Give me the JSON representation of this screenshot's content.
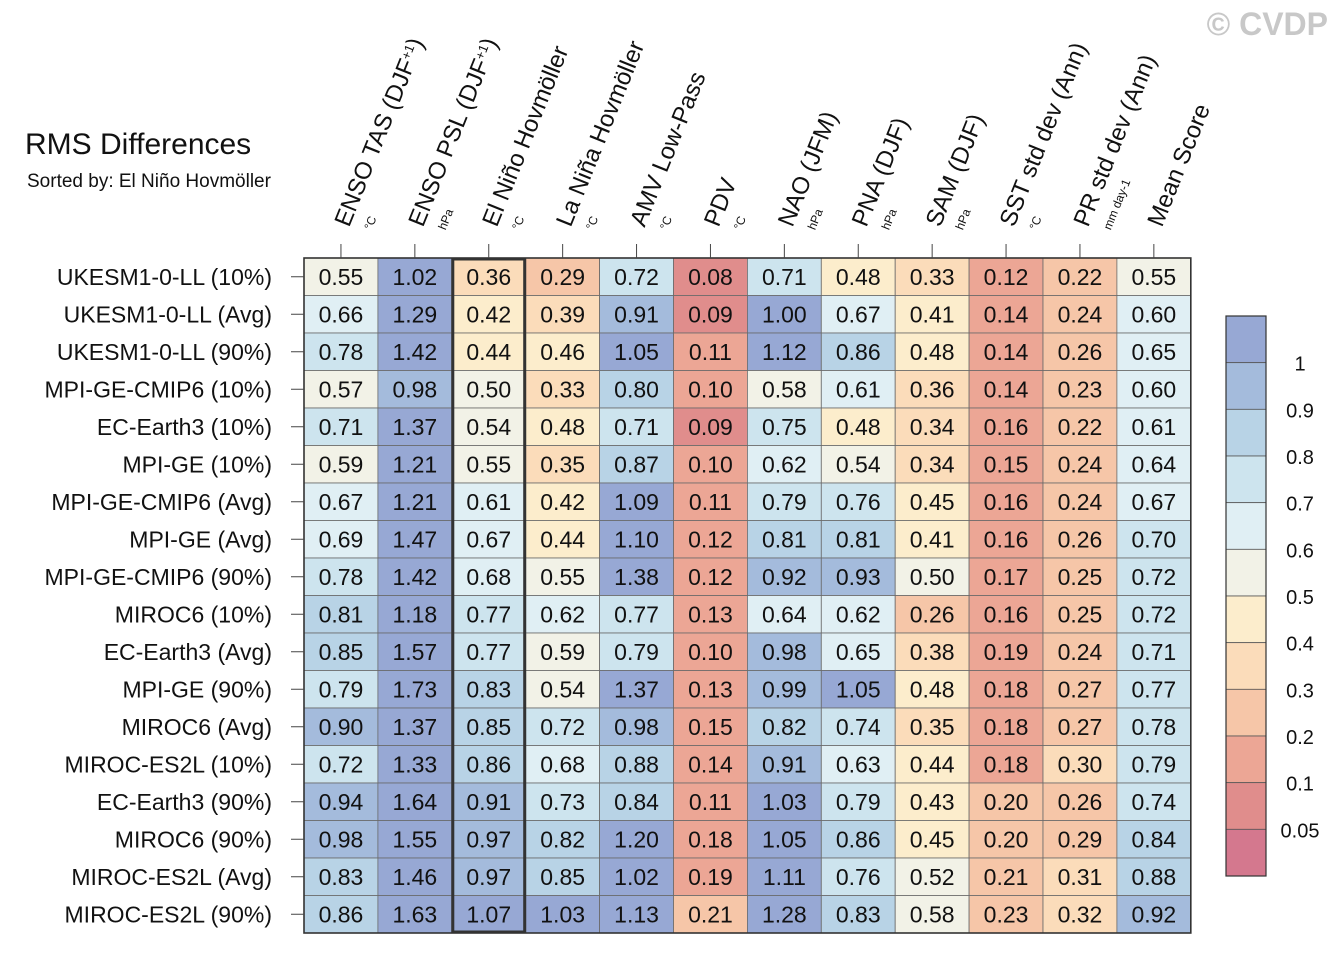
{
  "title": "RMS Differences",
  "subtitle": "Sorted by: El Niño Hovmöller",
  "copyright": "© CVDP",
  "chart_data": {
    "type": "heatmap",
    "title": "RMS Differences",
    "subtitle": "Sorted by: El Niño Hovmöller",
    "highlighted_column": "El Niño Hovmöller",
    "columns": [
      {
        "label": "ENSO TAS (DJF+1)",
        "main": "ENSO TAS (DJF",
        "sup": "+1",
        "close": ")",
        "unit": "°C"
      },
      {
        "label": "ENSO PSL (DJF+1)",
        "main": "ENSO PSL (DJF",
        "sup": "+1",
        "close": ")",
        "unit": "hPa"
      },
      {
        "label": "El Niño Hovmöller",
        "main": "El Niño Hovmöller",
        "sup": "",
        "close": "",
        "unit": "°C"
      },
      {
        "label": "La Niña Hovmöller",
        "main": "La Niña Hovmöller",
        "sup": "",
        "close": "",
        "unit": "°C"
      },
      {
        "label": "AMV Low-Pass",
        "main": "AMV Low-Pass",
        "sup": "",
        "close": "",
        "unit": "°C"
      },
      {
        "label": "PDV",
        "main": "PDV",
        "sup": "",
        "close": "",
        "unit": "°C"
      },
      {
        "label": "NAO (JFM)",
        "main": "NAO (JFM)",
        "sup": "",
        "close": "",
        "unit": "hPa"
      },
      {
        "label": "PNA (DJF)",
        "main": "PNA (DJF)",
        "sup": "",
        "close": "",
        "unit": "hPa"
      },
      {
        "label": "SAM (DJF)",
        "main": "SAM (DJF)",
        "sup": "",
        "close": "",
        "unit": "hPa"
      },
      {
        "label": "SST std dev (Ann)",
        "main": "SST std dev (Ann)",
        "sup": "",
        "close": "",
        "unit": "°C"
      },
      {
        "label": "PR std dev (Ann)",
        "main": "PR std dev (Ann)",
        "sup": "",
        "close": "",
        "unit": "mm day-1"
      },
      {
        "label": "Mean Score",
        "main": "Mean Score",
        "sup": "",
        "close": "",
        "unit": ""
      }
    ],
    "rows": [
      "UKESM1-0-LL (10%)",
      "UKESM1-0-LL (Avg)",
      "UKESM1-0-LL (90%)",
      "MPI-GE-CMIP6 (10%)",
      "EC-Earth3 (10%)",
      "MPI-GE (10%)",
      "MPI-GE-CMIP6 (Avg)",
      "MPI-GE (Avg)",
      "MPI-GE-CMIP6 (90%)",
      "MIROC6 (10%)",
      "EC-Earth3 (Avg)",
      "MPI-GE (90%)",
      "MIROC6 (Avg)",
      "MIROC-ES2L (10%)",
      "EC-Earth3 (90%)",
      "MIROC6 (90%)",
      "MIROC-ES2L (Avg)",
      "MIROC-ES2L (90%)"
    ],
    "values": [
      [
        "0.55",
        "1.02",
        "0.36",
        "0.29",
        "0.72",
        "0.08",
        "0.71",
        "0.48",
        "0.33",
        "0.12",
        "0.22",
        "0.55"
      ],
      [
        "0.66",
        "1.29",
        "0.42",
        "0.39",
        "0.91",
        "0.09",
        "1.00",
        "0.67",
        "0.41",
        "0.14",
        "0.24",
        "0.60"
      ],
      [
        "0.78",
        "1.42",
        "0.44",
        "0.46",
        "1.05",
        "0.11",
        "1.12",
        "0.86",
        "0.48",
        "0.14",
        "0.26",
        "0.65"
      ],
      [
        "0.57",
        "0.98",
        "0.50",
        "0.33",
        "0.80",
        "0.10",
        "0.58",
        "0.61",
        "0.36",
        "0.14",
        "0.23",
        "0.60"
      ],
      [
        "0.71",
        "1.37",
        "0.54",
        "0.48",
        "0.71",
        "0.09",
        "0.75",
        "0.48",
        "0.34",
        "0.16",
        "0.22",
        "0.61"
      ],
      [
        "0.59",
        "1.21",
        "0.55",
        "0.35",
        "0.87",
        "0.10",
        "0.62",
        "0.54",
        "0.34",
        "0.15",
        "0.24",
        "0.64"
      ],
      [
        "0.67",
        "1.21",
        "0.61",
        "0.42",
        "1.09",
        "0.11",
        "0.79",
        "0.76",
        "0.45",
        "0.16",
        "0.24",
        "0.67"
      ],
      [
        "0.69",
        "1.47",
        "0.67",
        "0.44",
        "1.10",
        "0.12",
        "0.81",
        "0.81",
        "0.41",
        "0.16",
        "0.26",
        "0.70"
      ],
      [
        "0.78",
        "1.42",
        "0.68",
        "0.55",
        "1.38",
        "0.12",
        "0.92",
        "0.93",
        "0.50",
        "0.17",
        "0.25",
        "0.72"
      ],
      [
        "0.81",
        "1.18",
        "0.77",
        "0.62",
        "0.77",
        "0.13",
        "0.64",
        "0.62",
        "0.26",
        "0.16",
        "0.25",
        "0.72"
      ],
      [
        "0.85",
        "1.57",
        "0.77",
        "0.59",
        "0.79",
        "0.10",
        "0.98",
        "0.65",
        "0.38",
        "0.19",
        "0.24",
        "0.71"
      ],
      [
        "0.79",
        "1.73",
        "0.83",
        "0.54",
        "1.37",
        "0.13",
        "0.99",
        "1.05",
        "0.48",
        "0.18",
        "0.27",
        "0.77"
      ],
      [
        "0.90",
        "1.37",
        "0.85",
        "0.72",
        "0.98",
        "0.15",
        "0.82",
        "0.74",
        "0.35",
        "0.18",
        "0.27",
        "0.78"
      ],
      [
        "0.72",
        "1.33",
        "0.86",
        "0.68",
        "0.88",
        "0.14",
        "0.91",
        "0.63",
        "0.44",
        "0.18",
        "0.30",
        "0.79"
      ],
      [
        "0.94",
        "1.64",
        "0.91",
        "0.73",
        "0.84",
        "0.11",
        "1.03",
        "0.79",
        "0.43",
        "0.20",
        "0.26",
        "0.74"
      ],
      [
        "0.98",
        "1.55",
        "0.97",
        "0.82",
        "1.20",
        "0.18",
        "1.05",
        "0.86",
        "0.45",
        "0.20",
        "0.29",
        "0.84"
      ],
      [
        "0.83",
        "1.46",
        "0.97",
        "0.85",
        "1.02",
        "0.19",
        "1.11",
        "0.76",
        "0.52",
        "0.21",
        "0.31",
        "0.88"
      ],
      [
        "0.86",
        "1.63",
        "1.07",
        "1.03",
        "1.13",
        "0.21",
        "1.28",
        "0.83",
        "0.58",
        "0.23",
        "0.32",
        "0.92"
      ]
    ],
    "colorbar": {
      "labels": [
        "1",
        "0.9",
        "0.8",
        "0.7",
        "0.6",
        "0.5",
        "0.4",
        "0.3",
        "0.2",
        "0.1",
        "0.05"
      ],
      "levels": [
        0.05,
        0.1,
        0.2,
        0.3,
        0.4,
        0.5,
        0.6,
        0.7,
        0.8,
        0.9,
        1
      ],
      "colors": [
        "#d4788e",
        "#e08d8c",
        "#eca695",
        "#f6c6a8",
        "#fbdcba",
        "#fcedcc",
        "#f2f2e7",
        "#e0eff4",
        "#cde4ee",
        "#b8d3e6",
        "#a4bbdc",
        "#97a8d4"
      ]
    }
  }
}
